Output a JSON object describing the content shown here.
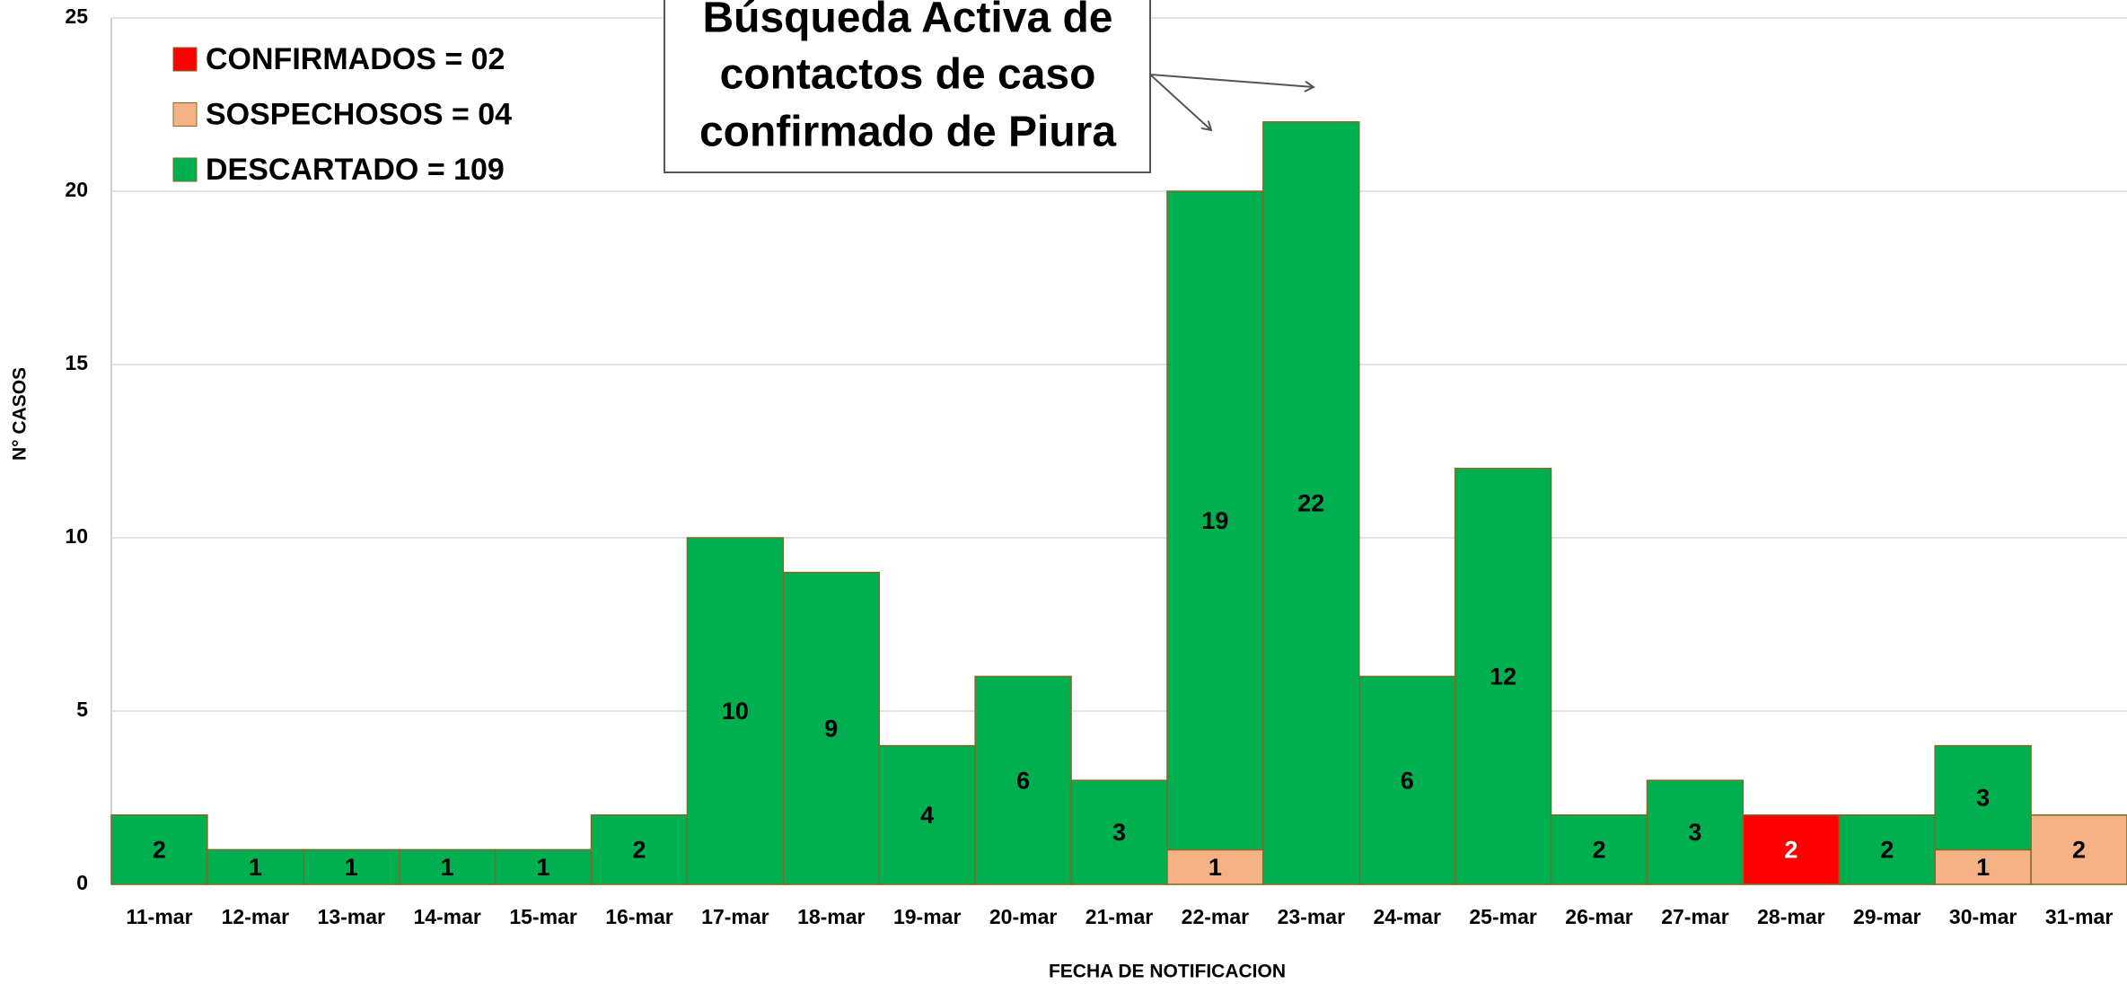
{
  "chart_data": {
    "type": "stacked_bar",
    "y_axis_label": "N° CASOS",
    "x_axis_label": "FECHA DE NOTIFICACION",
    "annotation": [
      "Búsqueda Activa de",
      "contactos de caso",
      "confirmado de Piura"
    ],
    "categories": [
      "11-mar",
      "12-mar",
      "13-mar",
      "14-mar",
      "15-mar",
      "16-mar",
      "17-mar",
      "18-mar",
      "19-mar",
      "20-mar",
      "21-mar",
      "22-mar",
      "23-mar",
      "24-mar",
      "25-mar",
      "26-mar",
      "27-mar",
      "28-mar",
      "29-mar",
      "30-mar",
      "31-mar"
    ],
    "series": [
      {
        "name": "CONFIRMADOS = 02",
        "color": "#ff0000",
        "label_color": "#ffffff",
        "values": [
          null,
          null,
          null,
          null,
          null,
          null,
          null,
          null,
          null,
          null,
          null,
          null,
          null,
          null,
          null,
          null,
          null,
          2,
          null,
          null,
          null
        ]
      },
      {
        "name": "SOSPECHOSOS = 04",
        "color": "#f4b183",
        "label_color": "#000000",
        "values": [
          null,
          null,
          null,
          null,
          null,
          null,
          null,
          null,
          null,
          null,
          null,
          1,
          null,
          null,
          null,
          null,
          null,
          null,
          null,
          1,
          2
        ]
      },
      {
        "name": "DESCARTADO = 109",
        "color": "#00b050",
        "label_color": "#000000",
        "values": [
          2,
          1,
          1,
          1,
          1,
          2,
          10,
          9,
          4,
          6,
          3,
          19,
          22,
          6,
          12,
          2,
          3,
          null,
          2,
          3,
          null
        ]
      }
    ],
    "ylim": [
      0,
      25
    ],
    "yticks": [
      0,
      5,
      10,
      15,
      20,
      25
    ],
    "grid": true
  }
}
